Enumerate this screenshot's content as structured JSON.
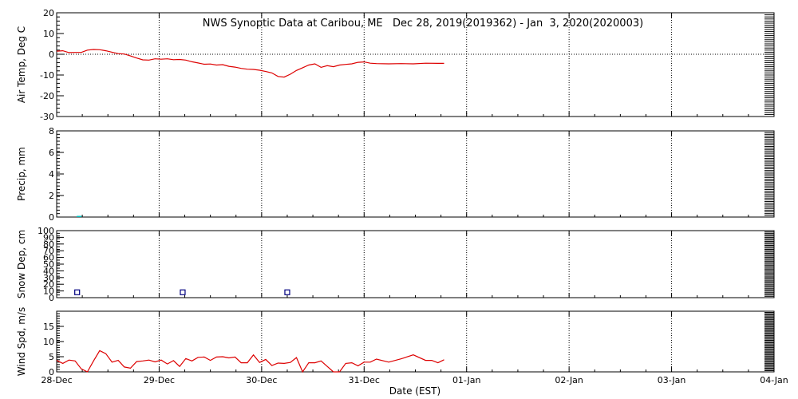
{
  "chart_data": {
    "type": "line",
    "title": "NWS Synoptic Data at Caribou, ME   Dec 28, 2019(2019362) - Jan  3, 2020(2020003)",
    "xlabel": "Date (EST)",
    "x_range_days": [
      0,
      7
    ],
    "x_ticks": [
      "28-Dec",
      "29-Dec",
      "30-Dec",
      "31-Dec",
      "01-Jan",
      "02-Jan",
      "03-Jan",
      "04-Jan"
    ],
    "colors": {
      "line": "#dd0000",
      "precip": "#00c0c0",
      "snow": "#000080",
      "grid": "#000000"
    },
    "panels": [
      {
        "name": "air-temp",
        "ylabel": "Air Temp, Deg C",
        "ylim": [
          -30,
          20
        ],
        "yticks": [
          -30,
          -20,
          -10,
          0,
          10,
          20
        ],
        "series_type": "line",
        "x": [
          0.0,
          0.06,
          0.12,
          0.18,
          0.24,
          0.3,
          0.36,
          0.42,
          0.48,
          0.54,
          0.6,
          0.66,
          0.72,
          0.78,
          0.84,
          0.9,
          0.96,
          1.02,
          1.08,
          1.14,
          1.2,
          1.26,
          1.32,
          1.38,
          1.44,
          1.5,
          1.56,
          1.62,
          1.68,
          1.74,
          1.8,
          1.86,
          1.92,
          1.98,
          2.04,
          2.1,
          2.16,
          2.22,
          2.28,
          2.34,
          2.4,
          2.46,
          2.52,
          2.58,
          2.64,
          2.7,
          2.76,
          2.82,
          2.88,
          2.94,
          3.0,
          3.06,
          3.12,
          3.24,
          3.36,
          3.48,
          3.6,
          3.72,
          3.78
        ],
        "y": [
          1.5,
          1.7,
          0.8,
          0.9,
          0.9,
          2.0,
          2.3,
          2.2,
          1.7,
          1.0,
          0.3,
          0.1,
          -0.8,
          -1.8,
          -2.7,
          -2.8,
          -2.2,
          -2.4,
          -2.2,
          -2.6,
          -2.5,
          -2.8,
          -3.6,
          -4.2,
          -4.8,
          -4.7,
          -5.2,
          -5.0,
          -5.8,
          -6.2,
          -6.8,
          -7.2,
          -7.3,
          -7.7,
          -8.3,
          -9.0,
          -10.7,
          -11.0,
          -9.6,
          -7.8,
          -6.5,
          -5.2,
          -4.6,
          -6.3,
          -5.5,
          -6.0,
          -5.2,
          -4.9,
          -4.6,
          -3.9,
          -3.7,
          -4.3,
          -4.5,
          -4.6,
          -4.5,
          -4.6,
          -4.3,
          -4.4,
          -4.4
        ]
      },
      {
        "name": "precip",
        "ylabel": "Precip, mm",
        "ylim": [
          0,
          8
        ],
        "yticks": [
          0,
          2,
          4,
          6,
          8
        ],
        "series_type": "bar",
        "x": [
          0.22
        ],
        "y": [
          0.05
        ]
      },
      {
        "name": "snow-depth",
        "ylabel": "Snow Dep, cm",
        "ylim": [
          0,
          100
        ],
        "yticks": [
          0,
          10,
          20,
          30,
          40,
          50,
          60,
          70,
          80,
          90,
          100
        ],
        "series_type": "markers",
        "x": [
          0.2,
          1.23,
          2.25
        ],
        "y": [
          8,
          8,
          8
        ]
      },
      {
        "name": "wind-speed",
        "ylabel": "Wind Spd, m/s",
        "ylim": [
          0,
          20
        ],
        "yticks": [
          0,
          5,
          10,
          15
        ],
        "series_type": "line",
        "x": [
          0.0,
          0.06,
          0.12,
          0.18,
          0.24,
          0.3,
          0.36,
          0.42,
          0.48,
          0.54,
          0.6,
          0.66,
          0.72,
          0.78,
          0.84,
          0.9,
          0.96,
          1.02,
          1.08,
          1.14,
          1.2,
          1.26,
          1.32,
          1.38,
          1.44,
          1.5,
          1.56,
          1.62,
          1.68,
          1.74,
          1.8,
          1.86,
          1.92,
          1.98,
          2.04,
          2.1,
          2.16,
          2.22,
          2.28,
          2.34,
          2.4,
          2.46,
          2.52,
          2.58,
          2.64,
          2.7,
          2.76,
          2.82,
          2.88,
          2.94,
          3.0,
          3.06,
          3.12,
          3.24,
          3.36,
          3.48,
          3.6,
          3.66,
          3.72,
          3.78
        ],
        "y": [
          3.8,
          2.8,
          3.9,
          3.6,
          1.0,
          0.0,
          3.6,
          7.0,
          6.0,
          3.2,
          3.8,
          1.6,
          1.2,
          3.4,
          3.6,
          3.9,
          3.3,
          3.9,
          2.6,
          3.7,
          1.8,
          4.4,
          3.6,
          4.8,
          4.9,
          3.8,
          4.9,
          5.0,
          4.6,
          4.9,
          3.0,
          3.0,
          5.6,
          3.1,
          4.1,
          2.1,
          2.9,
          2.8,
          3.1,
          4.7,
          0.0,
          3.0,
          3.0,
          3.6,
          1.8,
          0.0,
          0.0,
          2.8,
          3.0,
          2.0,
          3.2,
          3.2,
          4.2,
          3.2,
          4.3,
          5.6,
          3.8,
          3.8,
          3.0,
          4.0
        ]
      }
    ]
  }
}
